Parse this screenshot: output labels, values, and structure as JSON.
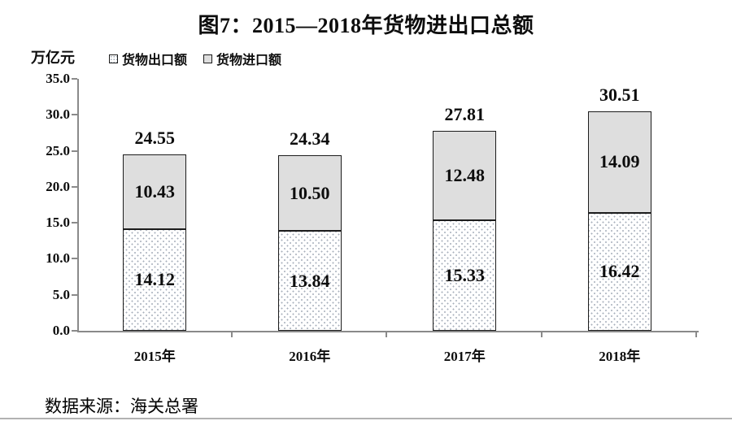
{
  "page": {
    "title": "图7：2015—2018年货物进出口总额",
    "unit_label": "万亿元",
    "source": "数据来源：海关总署"
  },
  "legend": {
    "items": [
      {
        "label": "货物出口额",
        "swatch": "dots-pattern"
      },
      {
        "label": "货物进口额",
        "swatch": "gray-fill"
      }
    ]
  },
  "chart_data": {
    "type": "bar",
    "stacked": true,
    "title": "图7：2015—2018年货物进出口总额",
    "ylabel": "万亿元",
    "xlabel": "",
    "ylim": [
      0,
      35
    ],
    "ytick_step": 5,
    "ytick_labels": [
      "0.0",
      "5.0",
      "10.0",
      "15.0",
      "20.0",
      "25.0",
      "30.0",
      "35.0"
    ],
    "grid": false,
    "legend_position": "top-left",
    "categories": [
      "2015年",
      "2016年",
      "2017年",
      "2018年"
    ],
    "series": [
      {
        "name": "货物出口额",
        "style": "dots",
        "values": [
          14.12,
          13.84,
          15.33,
          16.42
        ],
        "labels": [
          "14.12",
          "13.84",
          "15.33",
          "16.42"
        ]
      },
      {
        "name": "货物进口额",
        "style": "gray",
        "values": [
          10.43,
          10.5,
          12.48,
          14.09
        ],
        "labels": [
          "10.43",
          "10.50",
          "12.48",
          "14.09"
        ]
      }
    ],
    "totals": [
      24.55,
      24.34,
      27.81,
      30.51
    ],
    "total_labels": [
      "24.55",
      "24.34",
      "27.81",
      "30.51"
    ],
    "colors": {
      "gray_fill": "#dedede",
      "dot_color": "#a6aeba",
      "bar_outline": "#1c1c1c",
      "axis": "#8a8a8a",
      "text": "#0d0d0d"
    }
  }
}
